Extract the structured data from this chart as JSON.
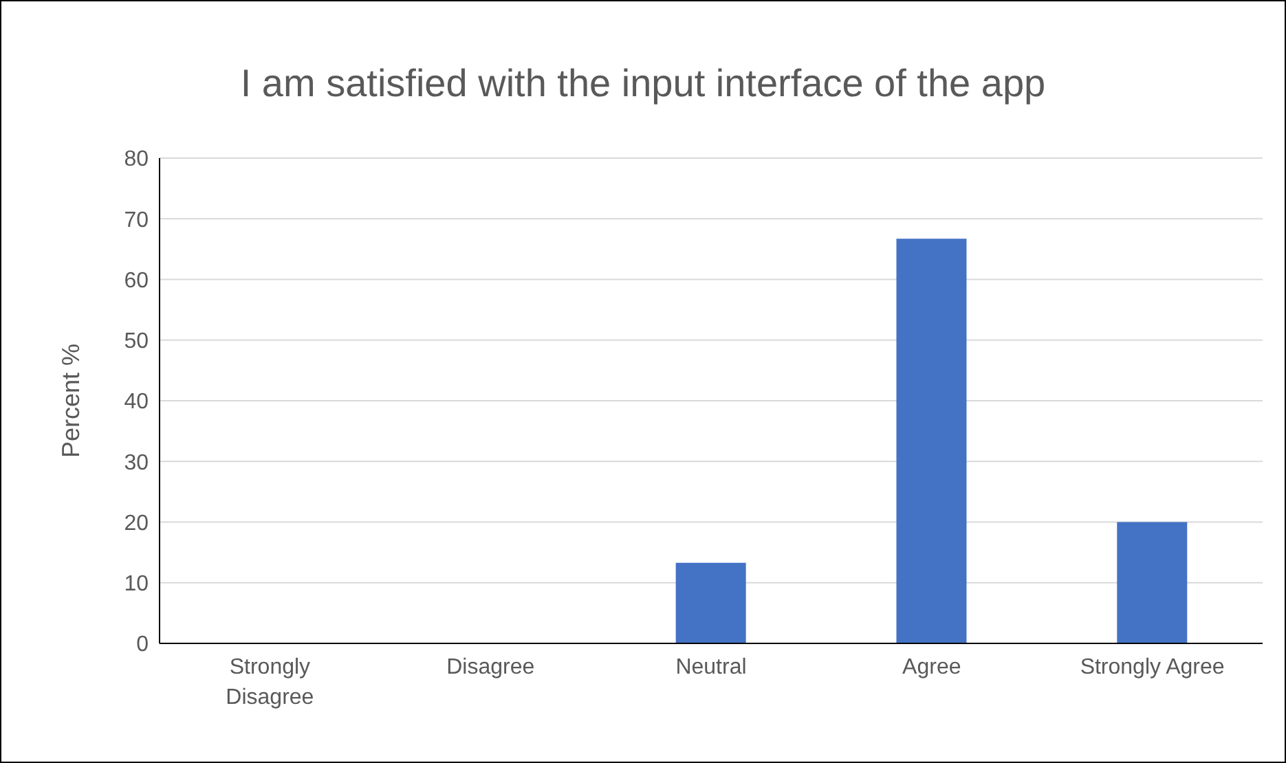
{
  "chart_data": {
    "type": "bar",
    "title": "I am satisfied with the input interface of the app",
    "ylabel": "Percent %",
    "categories": [
      "Strongly Disagree",
      "Disagree",
      "Neutral",
      "Agree",
      "Strongly Agree"
    ],
    "values": [
      0,
      0,
      13.3,
      66.7,
      20
    ],
    "color": "#4472c4",
    "ylim": [
      0,
      80
    ],
    "yticks": [
      0,
      10,
      20,
      30,
      40,
      50,
      60,
      70,
      80
    ],
    "grid": "y"
  }
}
